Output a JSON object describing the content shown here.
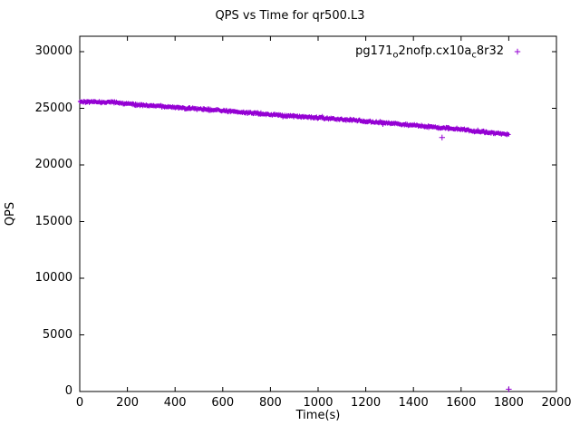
{
  "page": {
    "background": "#ffffff"
  },
  "chart_data": {
    "type": "scatter",
    "title": "QPS vs Time for qr500.L3",
    "xlabel": "Time(s)",
    "ylabel": "QPS",
    "xlim": [
      0,
      2000
    ],
    "ylim": [
      0,
      31360
    ],
    "xticks": [
      0,
      200,
      400,
      600,
      800,
      1000,
      1200,
      1400,
      1600,
      1800,
      2000
    ],
    "yticks": [
      0,
      5000,
      10000,
      15000,
      20000,
      25000,
      30000
    ],
    "grid": false,
    "legend": {
      "position": "top-right-inside",
      "marker": "+",
      "label_plain": "pg171_o2nofp.cx10a_c8r32",
      "label_parts": [
        {
          "text": "pg171",
          "sub": false
        },
        {
          "text": "o",
          "sub": true
        },
        {
          "text": "2nofp.cx10a",
          "sub": false
        },
        {
          "text": "c",
          "sub": true
        },
        {
          "text": "8r32",
          "sub": false
        }
      ]
    },
    "series": [
      {
        "name": "pg171_o2nofp.cx10a_c8r32",
        "color": "#9400D3",
        "marker": "+",
        "marker_px": 2.2,
        "sample_step_s": 2,
        "noise_amplitude_qps": 130,
        "trend": [
          {
            "x": 0,
            "y": 25600
          },
          {
            "x": 50,
            "y": 25570
          },
          {
            "x": 100,
            "y": 25530
          },
          {
            "x": 150,
            "y": 25540
          },
          {
            "x": 200,
            "y": 25380
          },
          {
            "x": 250,
            "y": 25300
          },
          {
            "x": 300,
            "y": 25250
          },
          {
            "x": 350,
            "y": 25150
          },
          {
            "x": 400,
            "y": 25080
          },
          {
            "x": 450,
            "y": 25000
          },
          {
            "x": 500,
            "y": 24950
          },
          {
            "x": 550,
            "y": 24850
          },
          {
            "x": 600,
            "y": 24800
          },
          {
            "x": 650,
            "y": 24700
          },
          {
            "x": 700,
            "y": 24600
          },
          {
            "x": 750,
            "y": 24550
          },
          {
            "x": 800,
            "y": 24450
          },
          {
            "x": 850,
            "y": 24380
          },
          {
            "x": 900,
            "y": 24300
          },
          {
            "x": 950,
            "y": 24250
          },
          {
            "x": 1000,
            "y": 24150
          },
          {
            "x": 1050,
            "y": 24100
          },
          {
            "x": 1100,
            "y": 24000
          },
          {
            "x": 1150,
            "y": 23950
          },
          {
            "x": 1200,
            "y": 23850
          },
          {
            "x": 1250,
            "y": 23780
          },
          {
            "x": 1300,
            "y": 23700
          },
          {
            "x": 1350,
            "y": 23600
          },
          {
            "x": 1400,
            "y": 23500
          },
          {
            "x": 1450,
            "y": 23400
          },
          {
            "x": 1500,
            "y": 23300
          },
          {
            "x": 1550,
            "y": 23250
          },
          {
            "x": 1600,
            "y": 23150
          },
          {
            "x": 1650,
            "y": 23000
          },
          {
            "x": 1700,
            "y": 22900
          },
          {
            "x": 1750,
            "y": 22800
          },
          {
            "x": 1800,
            "y": 22700
          }
        ],
        "outliers": [
          {
            "x": 1520,
            "y": 22420
          },
          {
            "x": 1800,
            "y": 200
          }
        ]
      }
    ]
  }
}
